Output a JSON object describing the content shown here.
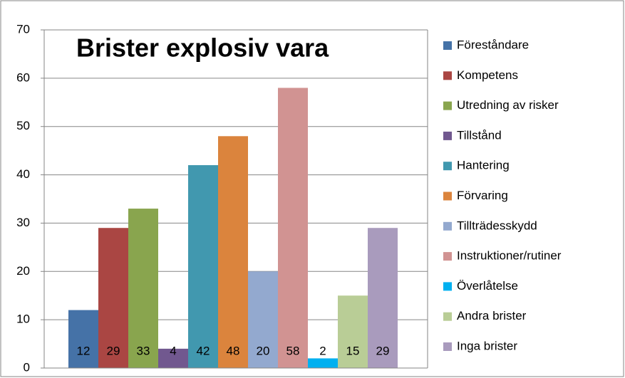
{
  "chart_data": {
    "type": "bar",
    "title": "Brister explosiv vara",
    "series": [
      {
        "name": "Föreståndare",
        "color": "#4572A7",
        "values": [
          12
        ]
      },
      {
        "name": "Kompetens",
        "color": "#AA4643",
        "values": [
          29
        ]
      },
      {
        "name": "Utredning av risker",
        "color": "#89A54E",
        "values": [
          33
        ]
      },
      {
        "name": "Tillstånd",
        "color": "#71588F",
        "values": [
          4
        ]
      },
      {
        "name": "Hantering",
        "color": "#4198AF",
        "values": [
          42
        ]
      },
      {
        "name": "Förvaring",
        "color": "#DB843D",
        "values": [
          48
        ]
      },
      {
        "name": "Tillträdesskydd",
        "color": "#93A9CF",
        "values": [
          20
        ]
      },
      {
        "name": "Instruktioner/rutiner",
        "color": "#D19392",
        "values": [
          58
        ]
      },
      {
        "name": "Överlåtelse",
        "color": "#00B0F0",
        "values": [
          2
        ]
      },
      {
        "name": "Andra brister",
        "color": "#B9CD96",
        "values": [
          15
        ]
      },
      {
        "name": "Inga brister",
        "color": "#A99BBD",
        "values": [
          29
        ]
      }
    ],
    "ylim": [
      0,
      70
    ],
    "yticks": [
      0,
      10,
      20,
      30,
      40,
      50,
      60,
      70
    ],
    "grid": true,
    "legend": "right"
  }
}
